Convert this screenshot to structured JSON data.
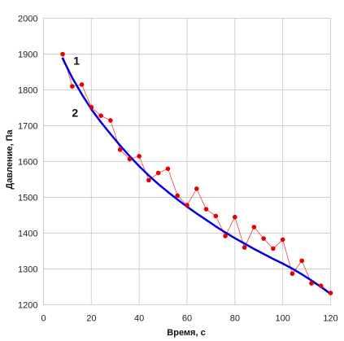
{
  "chart_data": {
    "type": "scatter",
    "xlabel": "Время, с",
    "ylabel": "Давление, Па",
    "xlim": [
      0,
      120
    ],
    "ylim": [
      1200,
      2000
    ],
    "x_ticks": [
      0,
      20,
      40,
      60,
      80,
      100,
      120
    ],
    "y_ticks": [
      1200,
      1300,
      1400,
      1500,
      1600,
      1700,
      1800,
      1900,
      2000
    ],
    "grid": true,
    "legend": "none",
    "annotations": [
      {
        "text": "1",
        "x": 13.8,
        "y": 1870
      },
      {
        "text": "2",
        "x": 13.2,
        "y": 1725
      }
    ],
    "series": [
      {
        "kind": "measured",
        "color": "#e60000",
        "style": "markers with thin connecting line",
        "x": [
          8,
          12,
          16,
          20,
          24,
          28,
          32,
          36,
          40,
          44,
          48,
          52,
          56,
          60,
          64,
          68,
          72,
          76,
          80,
          84,
          88,
          92,
          96,
          100,
          104,
          108,
          112,
          116,
          120
        ],
        "y": [
          1900,
          1810,
          1815,
          1752,
          1728,
          1715,
          1633,
          1607,
          1615,
          1548,
          1568,
          1580,
          1505,
          1478,
          1524,
          1467,
          1448,
          1392,
          1445,
          1360,
          1417,
          1385,
          1357,
          1382,
          1287,
          1323,
          1260,
          1253,
          1233
        ]
      },
      {
        "kind": "approximation",
        "color": "#0000e0",
        "style": "thick smooth line",
        "x": [
          8,
          12,
          16,
          20,
          24,
          28,
          32,
          36,
          40,
          44,
          48,
          52,
          56,
          60,
          64,
          68,
          72,
          76,
          80,
          84,
          88,
          92,
          96,
          100,
          104,
          108,
          112,
          116,
          120
        ],
        "y": [
          1888,
          1834,
          1788,
          1746,
          1710,
          1677,
          1645,
          1615,
          1587,
          1561,
          1537,
          1515,
          1494,
          1474,
          1455,
          1437,
          1419,
          1402,
          1386,
          1371,
          1356,
          1342,
          1328,
          1315,
          1301,
          1285,
          1268,
          1250,
          1230
        ]
      }
    ]
  }
}
